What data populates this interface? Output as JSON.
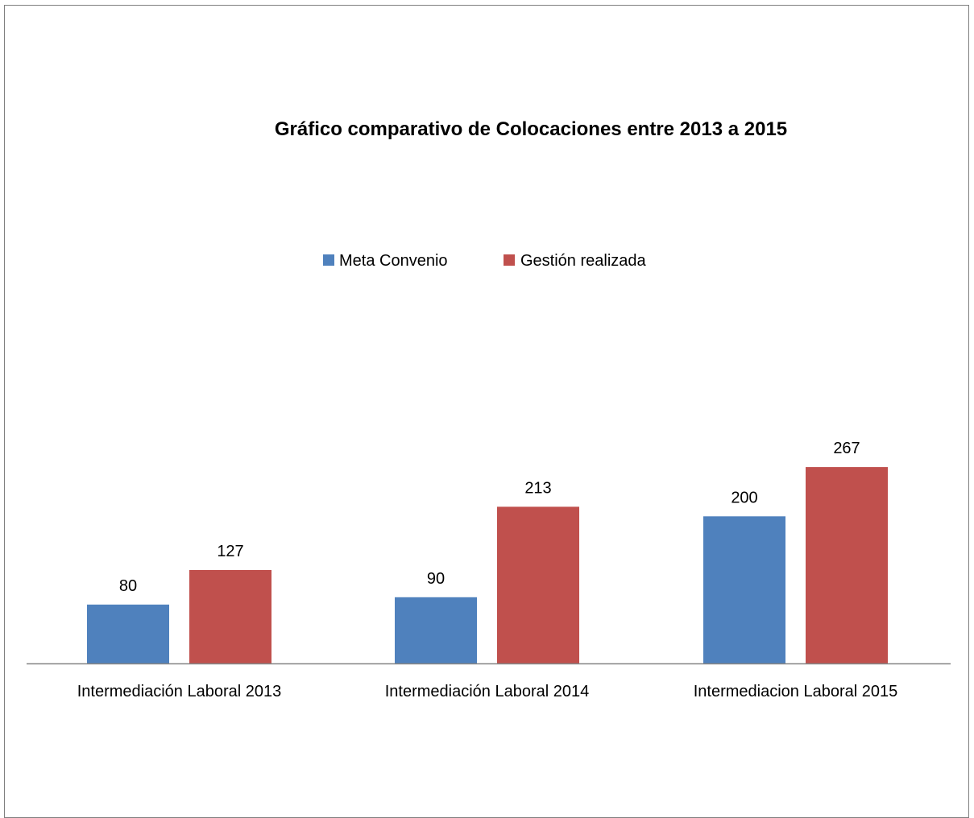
{
  "chart_data": {
    "type": "bar",
    "title": "Gráfico comparativo de Colocaciones entre 2013 a 2015",
    "xlabel": "",
    "ylabel": "",
    "categories": [
      "Intermediación Laboral 2013",
      "Intermediación Laboral 2014",
      "Intermediacion Laboral 2015"
    ],
    "series": [
      {
        "name": "Meta Convenio",
        "color": "#4f81bd",
        "values": [
          80,
          90,
          200
        ]
      },
      {
        "name": "Gestión realizada",
        "color": "#c0504d",
        "values": [
          127,
          213,
          267
        ]
      }
    ],
    "ylim": [
      0,
      280
    ],
    "grid": false,
    "legend": "top-center",
    "data_labels": true
  }
}
